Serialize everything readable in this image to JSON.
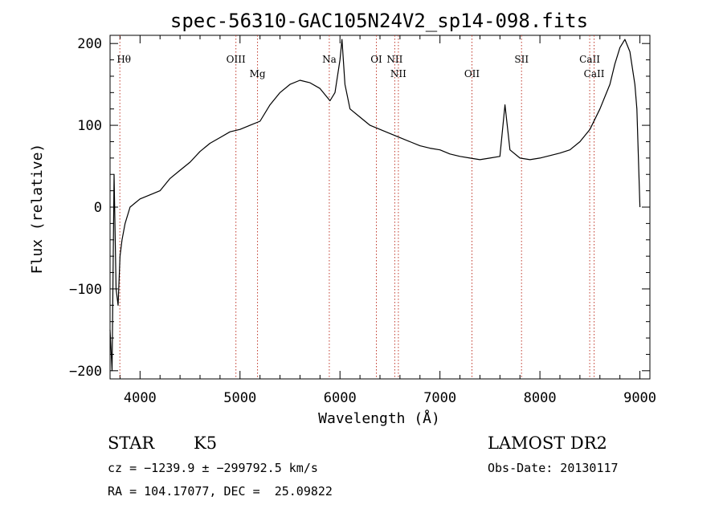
{
  "chart_data": {
    "type": "line",
    "title": "spec-56310-GAC105N24V2_sp14-098.fits",
    "xlabel": "Wavelength (Å)",
    "ylabel": "Flux (relative)",
    "xlim": [
      3700,
      9100
    ],
    "ylim": [
      -210,
      210
    ],
    "xticks": [
      4000,
      5000,
      6000,
      7000,
      8000,
      9000
    ],
    "yticks": [
      -200,
      -100,
      0,
      100,
      200
    ],
    "grid": false,
    "legend": "none",
    "line_color": "#000000",
    "marker_color": "#c0392b",
    "series": [
      {
        "x": [
          3700,
          3720,
          3740,
          3760,
          3780,
          3800,
          3820,
          3850,
          3900,
          3950,
          4000,
          4100,
          4200,
          4300,
          4400,
          4500,
          4600,
          4700,
          4800,
          4900,
          5000,
          5100,
          5200,
          5300,
          5400,
          5500,
          5600,
          5700,
          5800,
          5900,
          5950,
          6000,
          6020,
          6050,
          6100,
          6200,
          6300,
          6400,
          6500,
          6600,
          6700,
          6800,
          6900,
          7000,
          7100,
          7200,
          7300,
          7400,
          7500,
          7600,
          7650,
          7700,
          7800,
          7900,
          8000,
          8100,
          8200,
          8300,
          8400,
          8500,
          8600,
          8700,
          8750,
          8800,
          8850,
          8900,
          8950,
          8970,
          9000
        ],
        "y": [
          -150,
          -200,
          40,
          -100,
          -120,
          -60,
          -40,
          -20,
          0,
          5,
          10,
          15,
          20,
          35,
          45,
          55,
          68,
          78,
          85,
          92,
          95,
          100,
          105,
          125,
          140,
          150,
          155,
          152,
          145,
          130,
          140,
          180,
          205,
          150,
          120,
          110,
          100,
          95,
          90,
          85,
          80,
          75,
          72,
          70,
          65,
          62,
          60,
          58,
          60,
          62,
          125,
          70,
          60,
          58,
          60,
          63,
          66,
          70,
          80,
          95,
          120,
          150,
          175,
          195,
          205,
          190,
          150,
          120,
          0
        ]
      }
    ],
    "lines": [
      {
        "label": "Hθ",
        "x": 3798
      },
      {
        "label": "OIII",
        "x": 4959
      },
      {
        "label": "Mg",
        "x": 5175
      },
      {
        "label": "Na",
        "x": 5893
      },
      {
        "label": "OI",
        "x": 6364
      },
      {
        "label": "NII",
        "x": 6548
      },
      {
        "label": "NII",
        "x": 6584
      },
      {
        "label": "OII",
        "x": 7320
      },
      {
        "label": "SII",
        "x": 7816
      },
      {
        "label": "CaII",
        "x": 8498
      },
      {
        "label": "CaII",
        "x": 8542
      }
    ]
  },
  "footer": {
    "object_class": "STAR",
    "subclass": "K5",
    "survey": "LAMOST DR2",
    "cz": "cz = −1239.9 ± −299792.5 km/s",
    "obs_date": "Obs-Date: 20130117",
    "coords": "RA = 104.17077, DEC =  25.09822"
  }
}
